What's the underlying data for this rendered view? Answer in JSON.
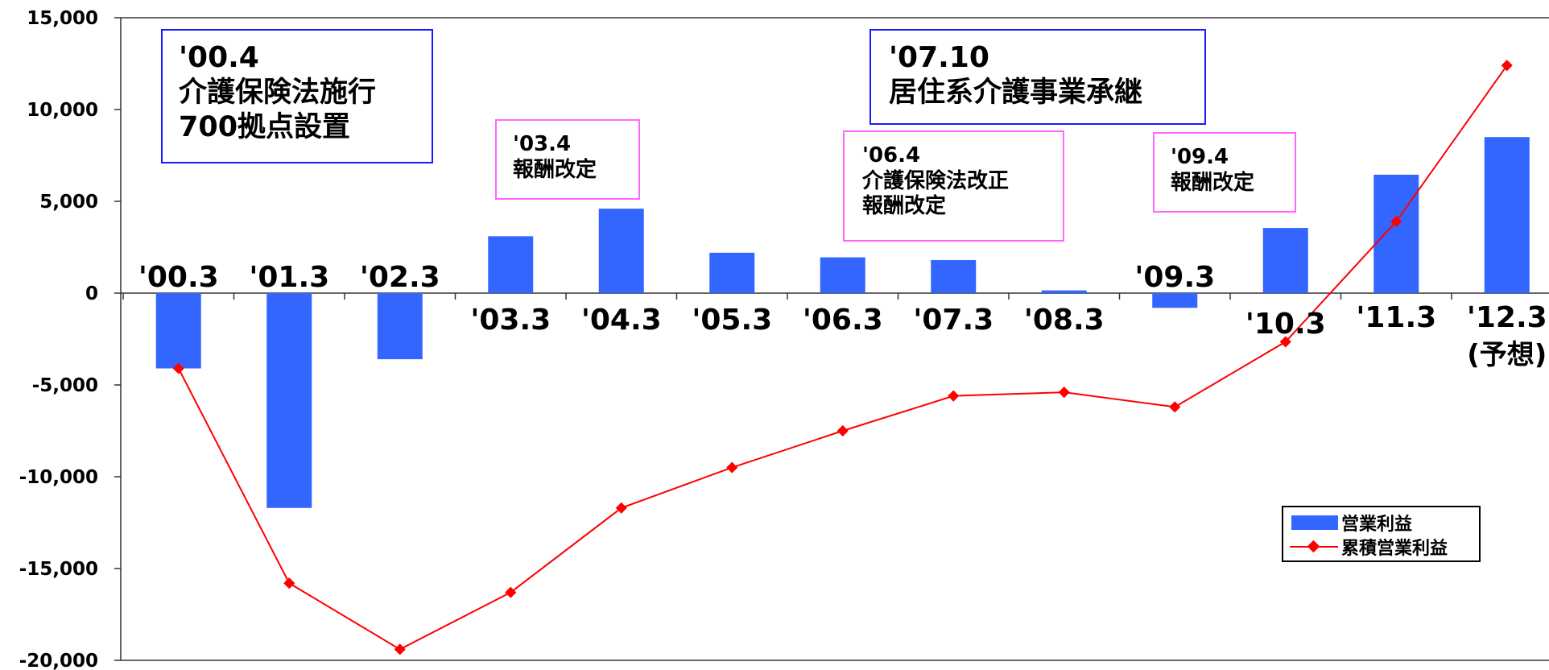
{
  "chart_data": {
    "type": "bar+line",
    "categories": [
      "'00.3",
      "'01.3",
      "'02.3",
      "'03.3",
      "'04.3",
      "'05.3",
      "'06.3",
      "'07.3",
      "'08.3",
      "'09.3",
      "'10.3",
      "'11.3",
      "'12.3"
    ],
    "forecast_note": "(予想)",
    "series": [
      {
        "name": "営業利益",
        "type": "bar",
        "color": "#3366ff",
        "values": [
          -4100,
          -11700,
          -3600,
          3100,
          4600,
          2200,
          1950,
          1800,
          150,
          -800,
          3550,
          6450,
          8500
        ]
      },
      {
        "name": "累積営業利益",
        "type": "line",
        "color": "#ff0000",
        "values": [
          -4100,
          -15800,
          -19400,
          -16300,
          -11700,
          -9500,
          -7500,
          -5600,
          -5400,
          -6200,
          -2650,
          3900,
          12400
        ]
      }
    ],
    "y_ticks": [
      "15,000",
      "10,000",
      "5,000",
      "0",
      "-5,000",
      "-10,000",
      "-15,000",
      "-20,000"
    ],
    "ylim": [
      -20000,
      15000
    ],
    "grid": false,
    "legend_position": "bottom-right"
  },
  "annotations": {
    "a0004": {
      "l1": "'00.4",
      "l2": "介護保険法施行",
      "l3": "700拠点設置"
    },
    "a0304": {
      "l1": "'03.4",
      "l2": "報酬改定"
    },
    "a0604": {
      "l1": "'06.4",
      "l2": "介護保険法改正",
      "l3": "報酬改定"
    },
    "a0710": {
      "l1": "'07.10",
      "l2": "居住系介護事業承継"
    },
    "a0904": {
      "l1": "'09.4",
      "l2": "報酬改定"
    }
  }
}
